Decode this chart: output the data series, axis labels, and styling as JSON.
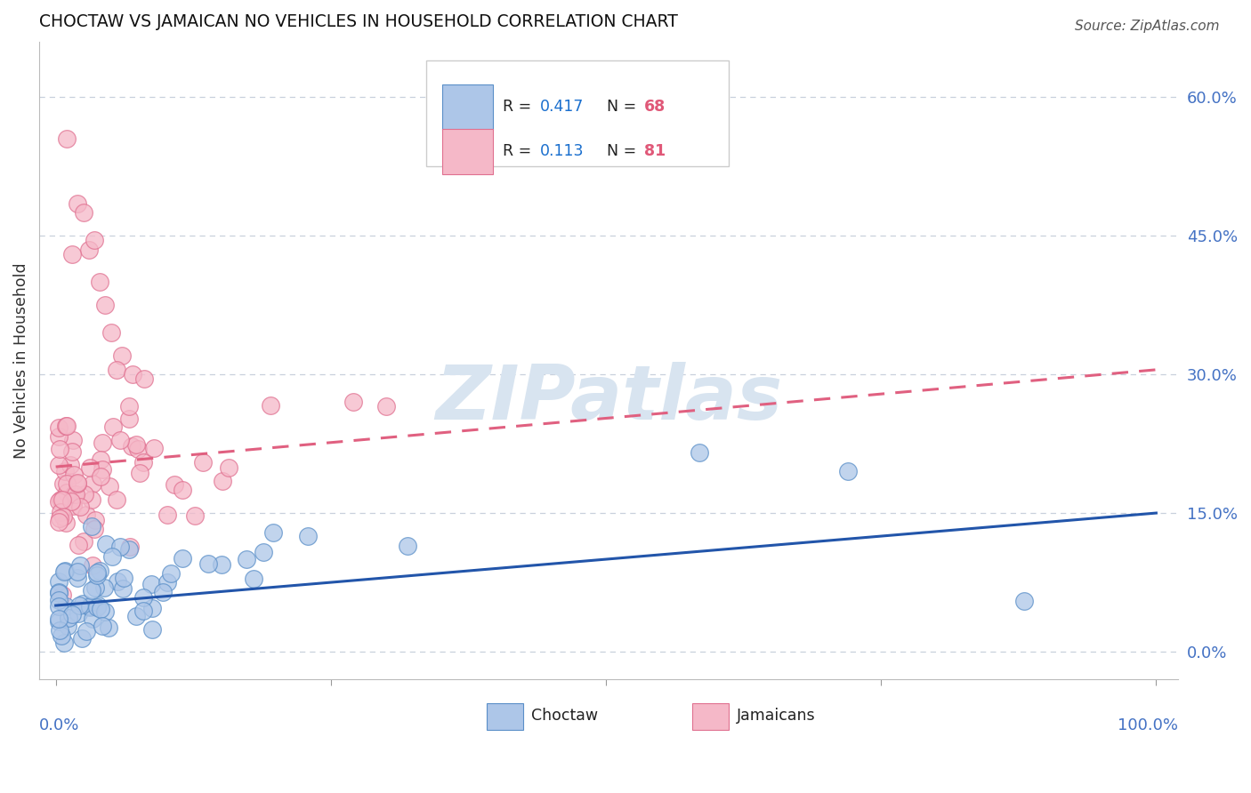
{
  "title": "CHOCTAW VS JAMAICAN NO VEHICLES IN HOUSEHOLD CORRELATION CHART",
  "source": "Source: ZipAtlas.com",
  "ylabel": "No Vehicles in Household",
  "ytick_labels": [
    "0.0%",
    "15.0%",
    "30.0%",
    "45.0%",
    "60.0%"
  ],
  "ytick_values": [
    0.0,
    0.15,
    0.3,
    0.45,
    0.6
  ],
  "xlim": [
    0.0,
    1.0
  ],
  "ylim": [
    -0.03,
    0.66
  ],
  "choctaw_R": "0.417",
  "choctaw_N": "68",
  "jamaican_R": "0.113",
  "jamaican_N": "81",
  "choctaw_scatter_color": "#adc6e8",
  "jamaican_scatter_color": "#f5b8c8",
  "choctaw_edge_color": "#5a8fc8",
  "jamaican_edge_color": "#e07090",
  "choctaw_line_color": "#2255aa",
  "jamaican_line_color": "#e06080",
  "legend_box_color": "#cccccc",
  "legend_R_color": "#1a6fce",
  "legend_N_color": "#e05878",
  "watermark_color": "#d8e4f0",
  "ytick_color": "#4472c4",
  "xtick_color": "#4472c4",
  "grid_color": "#c8d0dc",
  "choctaw_line_intercept": 0.05,
  "choctaw_line_slope": 0.1,
  "jamaican_line_intercept": 0.2,
  "jamaican_line_slope": 0.105
}
